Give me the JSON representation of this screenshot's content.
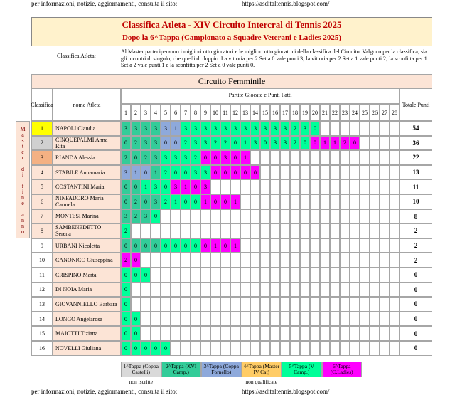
{
  "header": {
    "info_text": "per informazioni, notizie, aggiornamenti, consulta il sito:",
    "site": "https://asditaltennis.blogspot.com/"
  },
  "title": {
    "line1": "Classifica Atleta - XIV Circuito Intercral di Tennis 2025",
    "line2": "Dopo la 6^Tappa (Campionato a Squadre Veterani e Ladies 2025)"
  },
  "intro": {
    "label": "Classifica Atleta:",
    "text": "Al Master parteciperanno i migliori otto giocatori e le migliori otto giocatrici della classifica del Circuito. Valgono per la classifica, sia gli incontri di singolo, che quelli di doppio. La vittoria per 2 Set a 0 vale punti 3; la vittoria per 2 Set a 1 vale punti 2; la sconfitta per 1 Set a 2 vale punti 1 e la sconfitta per 2 Set a 0 vale punti 0."
  },
  "table": {
    "section_title": "Circuito Femminile",
    "col_rank": "Classifica",
    "col_name": "nome Atleta",
    "col_group": "Partite Giocate e Punti Fatti",
    "col_total": "Totale Punti",
    "side_label": "Master di fine anno",
    "game_numbers": [
      1,
      2,
      3,
      4,
      5,
      6,
      7,
      8,
      9,
      10,
      11,
      12,
      13,
      14,
      15,
      16,
      17,
      18,
      19,
      20,
      21,
      22,
      23,
      24,
      25,
      26,
      27,
      28
    ],
    "rows": [
      {
        "rank": 1,
        "rank_color": "#ffff00",
        "name": "NAPOLI Claudia",
        "values": [
          3,
          3,
          3,
          3,
          3,
          1,
          3,
          3,
          3,
          3,
          3,
          3,
          3,
          3,
          3,
          3,
          3,
          2,
          3,
          0
        ],
        "stages": [
          1,
          1,
          1,
          1,
          2,
          2,
          4,
          4,
          4,
          4,
          4,
          4,
          4,
          4,
          4,
          4,
          4,
          4,
          4,
          4
        ],
        "total": 54
      },
      {
        "rank": 2,
        "rank_color": "#d0d0d0",
        "name": "CINQUEPALMI Anna Rita",
        "values": [
          0,
          2,
          3,
          3,
          0,
          0,
          2,
          3,
          3,
          2,
          2,
          0,
          1,
          3,
          0,
          3,
          3,
          2,
          0,
          0,
          1,
          1,
          2,
          0
        ],
        "stages": [
          1,
          1,
          1,
          1,
          2,
          2,
          4,
          4,
          4,
          4,
          4,
          4,
          4,
          4,
          4,
          4,
          4,
          4,
          4,
          5,
          5,
          5,
          5,
          5
        ],
        "total": 36
      },
      {
        "rank": 3,
        "rank_color": "#f4b183",
        "name": "RIANDA Alessia",
        "values": [
          2,
          0,
          2,
          3,
          3,
          3,
          3,
          2,
          0,
          0,
          3,
          0,
          1
        ],
        "stages": [
          1,
          1,
          1,
          1,
          4,
          4,
          4,
          4,
          5,
          5,
          5,
          5,
          5
        ],
        "total": 22
      },
      {
        "rank": 4,
        "rank_color": "#fce4d6",
        "name": "STABILE Annamaria",
        "values": [
          3,
          1,
          0,
          1,
          2,
          0,
          0,
          3,
          3,
          0,
          0,
          0,
          0,
          0
        ],
        "stages": [
          2,
          2,
          2,
          1,
          4,
          4,
          4,
          4,
          4,
          5,
          5,
          5,
          5,
          5
        ],
        "total": 13
      },
      {
        "rank": 5,
        "rank_color": "#fce4d6",
        "name": "COSTANTINI Maria",
        "values": [
          0,
          0,
          1,
          3,
          0,
          3,
          1,
          0,
          3
        ],
        "stages": [
          1,
          1,
          4,
          4,
          4,
          5,
          5,
          5,
          5
        ],
        "total": 11
      },
      {
        "rank": 6,
        "rank_color": "#fce4d6",
        "name": "NINFADORO Maria Carmela",
        "values": [
          0,
          2,
          0,
          3,
          2,
          1,
          0,
          0,
          1,
          0,
          0,
          1
        ],
        "stages": [
          1,
          1,
          1,
          1,
          4,
          4,
          4,
          4,
          5,
          5,
          5,
          5
        ],
        "total": 10
      },
      {
        "rank": 7,
        "rank_color": "#fce4d6",
        "name": "MONTESI Marina",
        "values": [
          3,
          2,
          3,
          0
        ],
        "stages": [
          1,
          1,
          1,
          4
        ],
        "total": 8
      },
      {
        "rank": 8,
        "rank_color": "#fce4d6",
        "name": "SAMBENEDETTO Serena",
        "values": [
          2
        ],
        "stages": [
          4
        ],
        "total": 2
      },
      {
        "rank": 9,
        "rank_color": "#ffffff",
        "name": "URBANI Nicoletta",
        "values": [
          0,
          0,
          0,
          0,
          0,
          0,
          0,
          0,
          0,
          1,
          0,
          1
        ],
        "stages": [
          1,
          1,
          1,
          1,
          4,
          4,
          4,
          4,
          5,
          5,
          5,
          5
        ],
        "total": 2
      },
      {
        "rank": 10,
        "rank_color": "#ffffff",
        "name": "CANONICO Giuseppina",
        "values": [
          2,
          0
        ],
        "stages": [
          5,
          5
        ],
        "total": 2
      },
      {
        "rank": 11,
        "rank_color": "#ffffff",
        "name": "CRISPINO Marta",
        "values": [
          0,
          0,
          0
        ],
        "stages": [
          4,
          4,
          4
        ],
        "total": 0
      },
      {
        "rank": 12,
        "rank_color": "#ffffff",
        "name": "DI NOIA Maria",
        "values": [
          0
        ],
        "stages": [
          4
        ],
        "total": 0
      },
      {
        "rank": 13,
        "rank_color": "#ffffff",
        "name": "GIOVANNIELLO Barbara",
        "values": [
          0
        ],
        "stages": [
          4
        ],
        "total": 0
      },
      {
        "rank": 14,
        "rank_color": "#ffffff",
        "name": "LONGO Angelarosa",
        "values": [
          0,
          0
        ],
        "stages": [
          4,
          4
        ],
        "total": 0
      },
      {
        "rank": 15,
        "rank_color": "#ffffff",
        "name": "MAIOTTI Tiziana",
        "values": [
          0,
          0
        ],
        "stages": [
          4,
          4
        ],
        "total": 0
      },
      {
        "rank": 16,
        "rank_color": "#ffffff",
        "name": "NOVELLI Giuliana",
        "values": [
          0,
          0,
          0,
          0,
          0
        ],
        "stages": [
          4,
          4,
          4,
          4,
          4
        ],
        "total": 0
      }
    ]
  },
  "legend": {
    "items": [
      {
        "label": "1^Tappa (Coppa Castelli)",
        "color": "#d9d9d9",
        "note": "non iscritte"
      },
      {
        "label": "2^Tappa (XVI Camp.)",
        "color": "#33cc99"
      },
      {
        "label": "3^Tappa (Coppa Fornello)",
        "color": "#8ea9db"
      },
      {
        "label": "4^Tappa (Master IV Cat)",
        "color": "#ffcc66",
        "note": "non qualificate"
      },
      {
        "label": "5^Tappa (V Camp.)",
        "color": "#00ff99"
      },
      {
        "label": "6^Tappa (C.Ladies)",
        "color": "#ff00ff"
      }
    ]
  },
  "footer": {
    "info_text": "per informazioni, notizie, aggiornamenti, consulta il sito:",
    "site": "https://asditaltennis.blogspot.com/"
  }
}
